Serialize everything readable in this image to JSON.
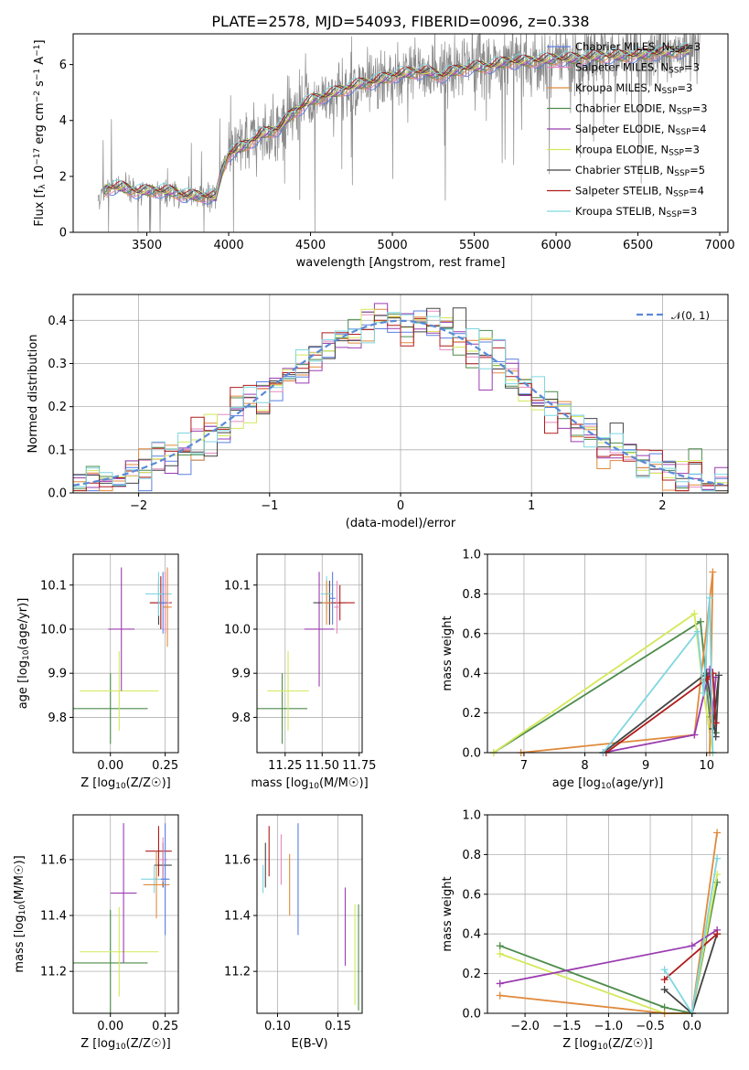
{
  "figure": {
    "title": "PLATE=2578, MJD=54093, FIBERID=0096, z=0.338"
  },
  "chart_data": [
    {
      "id": "spectrum",
      "type": "line",
      "xlabel": "wavelength [Angstrom, rest frame]",
      "ylabel": "Flux [f_λ 10^-17 erg cm^-2 s^-1 A^-1]",
      "xlim": [
        3050,
        7050
      ],
      "ylim": [
        0,
        7.1
      ],
      "xticks": [
        3500,
        4000,
        4500,
        5000,
        5500,
        6000,
        6500,
        7000
      ],
      "yticks": [
        0,
        2,
        4,
        6
      ],
      "grid": false,
      "legend_position": "top-right",
      "data_range": [
        3200,
        6880
      ],
      "legend": [
        {
          "label": "Chabrier MILES, N",
          "sub": "SSP",
          "suffix": "=3",
          "color": "#5a7fe0"
        },
        {
          "label": "Salpeter MILES, N",
          "sub": "SSP",
          "suffix": "=3",
          "color": "#e58ac0"
        },
        {
          "label": "Kroupa MILES, N",
          "sub": "SSP",
          "suffix": "=3",
          "color": "#e08a3c"
        },
        {
          "label": "Chabrier ELODIE, N",
          "sub": "SSP",
          "suffix": "=3",
          "color": "#4c8c4a"
        },
        {
          "label": "Salpeter ELODIE, N",
          "sub": "SSP",
          "suffix": "=4",
          "color": "#9b3cb0"
        },
        {
          "label": "Kroupa ELODIE, N",
          "sub": "SSP",
          "suffix": "=3",
          "color": "#d4e85a"
        },
        {
          "label": "Chabrier STELIB, N",
          "sub": "SSP",
          "suffix": "=5",
          "color": "#444444"
        },
        {
          "label": "Salpeter STELIB, N",
          "sub": "SSP",
          "suffix": "=4",
          "color": "#b01c1c"
        },
        {
          "label": "Kroupa STELIB, N",
          "sub": "SSP",
          "suffix": "=3",
          "color": "#7fd6e0"
        }
      ],
      "continuum": [
        [
          3200,
          1.2
        ],
        [
          3260,
          1.6
        ],
        [
          3350,
          1.6
        ],
        [
          3450,
          1.45
        ],
        [
          3550,
          1.5
        ],
        [
          3650,
          1.45
        ],
        [
          3750,
          1.3
        ],
        [
          3850,
          1.3
        ],
        [
          3920,
          1.25
        ],
        [
          3960,
          2.2
        ],
        [
          4000,
          2.8
        ],
        [
          4100,
          3.1
        ],
        [
          4200,
          3.5
        ],
        [
          4300,
          3.7
        ],
        [
          4400,
          4.3
        ],
        [
          4500,
          4.7
        ],
        [
          4600,
          4.9
        ],
        [
          4700,
          5.1
        ],
        [
          4800,
          5.3
        ],
        [
          4900,
          5.4
        ],
        [
          5000,
          5.6
        ],
        [
          5100,
          5.7
        ],
        [
          5200,
          5.75
        ],
        [
          5300,
          5.6
        ],
        [
          5400,
          5.8
        ],
        [
          5500,
          5.9
        ],
        [
          5600,
          5.95
        ],
        [
          5700,
          6.1
        ],
        [
          5800,
          6.1
        ],
        [
          5900,
          6.15
        ],
        [
          6000,
          6.2
        ],
        [
          6100,
          6.2
        ],
        [
          6200,
          6.25
        ],
        [
          6300,
          6.3
        ],
        [
          6400,
          6.3
        ],
        [
          6500,
          6.35
        ],
        [
          6600,
          6.4
        ],
        [
          6700,
          6.45
        ],
        [
          6800,
          6.5
        ],
        [
          6880,
          6.5
        ]
      ]
    },
    {
      "id": "residuals",
      "type": "step",
      "xlabel": "(data-model)/error",
      "ylabel": "Normed distribution",
      "xlim": [
        -2.5,
        2.5
      ],
      "ylim": [
        0,
        0.46
      ],
      "xticks": [
        -2,
        -1,
        0,
        1,
        2
      ],
      "yticks": [
        0.0,
        0.1,
        0.2,
        0.3,
        0.4
      ],
      "grid": true,
      "legend_position": "top-right",
      "legend": [
        {
          "label": "𝒩(0, 1)",
          "color": "#5a8ad8",
          "style": "dashed"
        }
      ],
      "bin_width": 0.1
    },
    {
      "id": "z-age",
      "type": "errorbar",
      "xlabel": "Z [log10(Z/Z☉)]",
      "ylabel": "age  [log10(age/yr)]",
      "xlim": [
        -0.17,
        0.31
      ],
      "ylim": [
        9.72,
        10.17
      ],
      "xticks": [
        0.0,
        0.25
      ],
      "yticks": [
        9.8,
        9.9,
        10.0,
        10.1
      ],
      "grid": true,
      "points": [
        {
          "x": 0.0,
          "y": 9.82,
          "xerr": 0.17,
          "yerr": 0.08,
          "color": "#4c8c4a"
        },
        {
          "x": 0.04,
          "y": 9.86,
          "xerr": 0.18,
          "yerr": 0.09,
          "color": "#d4e85a"
        },
        {
          "x": 0.05,
          "y": 10.0,
          "xerr": 0.06,
          "yerr": 0.14,
          "color": "#9b3cb0"
        },
        {
          "x": 0.22,
          "y": 10.06,
          "xerr": 0.04,
          "yerr": 0.05,
          "color": "#444444"
        },
        {
          "x": 0.23,
          "y": 10.06,
          "xerr": 0.05,
          "yerr": 0.06,
          "color": "#b01c1c"
        },
        {
          "x": 0.22,
          "y": 10.08,
          "xerr": 0.06,
          "yerr": 0.05,
          "color": "#7fd6e0"
        },
        {
          "x": 0.25,
          "y": 10.06,
          "xerr": 0.02,
          "yerr": 0.07,
          "color": "#e58ac0"
        },
        {
          "x": 0.26,
          "y": 10.05,
          "xerr": 0.02,
          "yerr": 0.09,
          "color": "#e08a3c"
        },
        {
          "x": 0.24,
          "y": 10.06,
          "xerr": 0.02,
          "yerr": 0.07,
          "color": "#5a7fe0"
        }
      ]
    },
    {
      "id": "mass-age",
      "type": "errorbar",
      "xlabel": "mass [log10(M/M☉)]",
      "ylabel": "",
      "xlim": [
        11.06,
        11.77
      ],
      "ylim": [
        9.72,
        10.17
      ],
      "xticks": [
        11.25,
        11.5,
        11.75
      ],
      "yticks": [
        9.8,
        9.9,
        10.0,
        10.1
      ],
      "grid": true,
      "points": [
        {
          "x": 11.23,
          "y": 9.82,
          "xerr": 0.17,
          "yerr": 0.08,
          "color": "#4c8c4a"
        },
        {
          "x": 11.27,
          "y": 9.86,
          "xerr": 0.14,
          "yerr": 0.09,
          "color": "#d4e85a"
        },
        {
          "x": 11.48,
          "y": 10.0,
          "xerr": 0.1,
          "yerr": 0.13,
          "color": "#9b3cb0"
        },
        {
          "x": 11.55,
          "y": 10.06,
          "xerr": 0.11,
          "yerr": 0.05,
          "color": "#444444"
        },
        {
          "x": 11.62,
          "y": 10.06,
          "xerr": 0.1,
          "yerr": 0.04,
          "color": "#b01c1c"
        },
        {
          "x": 11.53,
          "y": 10.08,
          "xerr": 0.04,
          "yerr": 0.04,
          "color": "#7fd6e0"
        },
        {
          "x": 11.6,
          "y": 10.05,
          "xerr": 0.02,
          "yerr": 0.06,
          "color": "#e58ac0"
        },
        {
          "x": 11.53,
          "y": 10.06,
          "xerr": 0.03,
          "yerr": 0.05,
          "color": "#e08a3c"
        },
        {
          "x": 11.57,
          "y": 10.07,
          "xerr": 0.02,
          "yerr": 0.06,
          "color": "#5a7fe0"
        }
      ]
    },
    {
      "id": "age-weight",
      "type": "line",
      "xlabel": "age  [log10(age/yr)]",
      "ylabel": "mass weight",
      "xlim": [
        6.4,
        10.35
      ],
      "ylim": [
        0,
        1.0
      ],
      "xticks": [
        7,
        8,
        9,
        10
      ],
      "yticks": [
        0.0,
        0.2,
        0.4,
        0.6,
        0.8,
        1.0
      ],
      "grid": true,
      "series": [
        {
          "color": "#4c8c4a",
          "points": [
            [
              6.5,
              0.0
            ],
            [
              9.9,
              0.66
            ],
            [
              10.05,
              0.18
            ],
            [
              10.15,
              0.1
            ]
          ]
        },
        {
          "color": "#d4e85a",
          "points": [
            [
              6.5,
              0.0
            ],
            [
              9.8,
              0.7
            ],
            [
              9.95,
              0.3
            ],
            [
              10.1,
              0.0
            ]
          ]
        },
        {
          "color": "#e08a3c",
          "points": [
            [
              6.95,
              0.0
            ],
            [
              9.8,
              0.09
            ],
            [
              10.1,
              0.91
            ],
            [
              10.05,
              0.0
            ]
          ]
        },
        {
          "color": "#9b3cb0",
          "points": [
            [
              8.3,
              0.0
            ],
            [
              9.8,
              0.09
            ],
            [
              10.05,
              0.42
            ],
            [
              10.1,
              0.2
            ],
            [
              10.15,
              0.38
            ]
          ]
        },
        {
          "color": "#444444",
          "points": [
            [
              8.3,
              0.0
            ],
            [
              10.0,
              0.4
            ],
            [
              10.15,
              0.08
            ],
            [
              10.2,
              0.39
            ],
            [
              10.1,
              0.12
            ]
          ]
        },
        {
          "color": "#b01c1c",
          "points": [
            [
              8.35,
              0.0
            ],
            [
              10.0,
              0.37
            ],
            [
              10.1,
              0.4
            ],
            [
              10.15,
              0.15
            ]
          ]
        },
        {
          "color": "#7fd6e0",
          "points": [
            [
              8.3,
              0.0
            ],
            [
              9.85,
              0.61
            ],
            [
              9.95,
              0.3
            ],
            [
              10.05,
              0.78
            ],
            [
              10.1,
              0.0
            ]
          ]
        }
      ]
    },
    {
      "id": "z-mass",
      "type": "errorbar",
      "xlabel": "Z [log10(Z/Z☉)]",
      "ylabel": "mass [log10(M/M☉)]",
      "xlim": [
        -0.17,
        0.31
      ],
      "ylim": [
        11.05,
        11.76
      ],
      "xticks": [
        0.0,
        0.25
      ],
      "yticks": [
        11.2,
        11.4,
        11.6
      ],
      "grid": true,
      "points": [
        {
          "x": 0.0,
          "y": 11.23,
          "xerr": 0.17,
          "yerr": 0.19,
          "color": "#4c8c4a"
        },
        {
          "x": 0.04,
          "y": 11.27,
          "xerr": 0.18,
          "yerr": 0.16,
          "color": "#d4e85a"
        },
        {
          "x": 0.06,
          "y": 11.48,
          "xerr": 0.06,
          "yerr": 0.25,
          "color": "#9b3cb0"
        },
        {
          "x": 0.24,
          "y": 11.58,
          "xerr": 0.04,
          "yerr": 0.08,
          "color": "#444444"
        },
        {
          "x": 0.22,
          "y": 11.63,
          "xerr": 0.06,
          "yerr": 0.09,
          "color": "#b01c1c"
        },
        {
          "x": 0.2,
          "y": 11.53,
          "xerr": 0.06,
          "yerr": 0.05,
          "color": "#7fd6e0"
        },
        {
          "x": 0.24,
          "y": 11.6,
          "xerr": 0.02,
          "yerr": 0.08,
          "color": "#e58ac0"
        },
        {
          "x": 0.21,
          "y": 11.51,
          "xerr": 0.06,
          "yerr": 0.12,
          "color": "#e08a3c"
        },
        {
          "x": 0.25,
          "y": 11.53,
          "xerr": 0.02,
          "yerr": 0.2,
          "color": "#5a7fe0"
        }
      ]
    },
    {
      "id": "ebv-mass",
      "type": "errorbar",
      "xlabel": "E(B-V)",
      "ylabel": "",
      "xlim": [
        0.083,
        0.17
      ],
      "ylim": [
        11.05,
        11.76
      ],
      "xticks": [
        0.1,
        0.15
      ],
      "yticks": [
        11.2,
        11.4,
        11.6
      ],
      "grid": true,
      "points": [
        {
          "x": 0.088,
          "y": 11.53,
          "xerr": 0.0,
          "yerr": 0.05,
          "color": "#7fd6e0"
        },
        {
          "x": 0.09,
          "y": 11.58,
          "xerr": 0.0,
          "yerr": 0.08,
          "color": "#444444"
        },
        {
          "x": 0.093,
          "y": 11.63,
          "xerr": 0.0,
          "yerr": 0.09,
          "color": "#b01c1c"
        },
        {
          "x": 0.103,
          "y": 11.6,
          "xerr": 0.0,
          "yerr": 0.09,
          "color": "#e58ac0"
        },
        {
          "x": 0.11,
          "y": 11.51,
          "xerr": 0.0,
          "yerr": 0.11,
          "color": "#e08a3c"
        },
        {
          "x": 0.117,
          "y": 11.53,
          "xerr": 0.0,
          "yerr": 0.2,
          "color": "#5a7fe0"
        },
        {
          "x": 0.156,
          "y": 11.36,
          "xerr": 0.0,
          "yerr": 0.14,
          "color": "#9b3cb0"
        },
        {
          "x": 0.164,
          "y": 11.26,
          "xerr": 0.0,
          "yerr": 0.18,
          "color": "#d4e85a"
        },
        {
          "x": 0.167,
          "y": 11.25,
          "xerr": 0.0,
          "yerr": 0.19,
          "color": "#4c8c4a"
        }
      ]
    },
    {
      "id": "z-weight",
      "type": "line",
      "xlabel": "Z [log10(Z/Z☉)]",
      "ylabel": "mass weight",
      "xlim": [
        -2.45,
        0.43
      ],
      "ylim": [
        0,
        1.0
      ],
      "xticks": [
        -2.0,
        -1.5,
        -1.0,
        -0.5,
        0.0
      ],
      "yticks": [
        0.0,
        0.2,
        0.4,
        0.6,
        0.8,
        1.0
      ],
      "grid": true,
      "series": [
        {
          "color": "#4c8c4a",
          "points": [
            [
              -2.3,
              0.34
            ],
            [
              -0.33,
              0.03
            ],
            [
              0.0,
              0.0
            ],
            [
              0.3,
              0.66
            ]
          ]
        },
        {
          "color": "#d4e85a",
          "points": [
            [
              -2.3,
              0.3
            ],
            [
              -0.33,
              0.0
            ],
            [
              0.0,
              0.0
            ],
            [
              0.3,
              0.7
            ]
          ]
        },
        {
          "color": "#e08a3c",
          "points": [
            [
              -2.3,
              0.09
            ],
            [
              -0.33,
              0.0
            ],
            [
              0.0,
              0.0
            ],
            [
              0.3,
              0.91
            ]
          ]
        },
        {
          "color": "#9b3cb0",
          "points": [
            [
              -2.3,
              0.15
            ],
            [
              0.0,
              0.34
            ],
            [
              0.3,
              0.42
            ]
          ]
        },
        {
          "color": "#444444",
          "points": [
            [
              -0.33,
              0.12
            ],
            [
              0.0,
              0.0
            ],
            [
              0.3,
              0.4
            ]
          ]
        },
        {
          "color": "#b01c1c",
          "points": [
            [
              -0.33,
              0.17
            ],
            [
              0.3,
              0.4
            ]
          ]
        },
        {
          "color": "#7fd6e0",
          "points": [
            [
              -0.33,
              0.22
            ],
            [
              0.0,
              0.0
            ],
            [
              0.3,
              0.78
            ]
          ]
        }
      ]
    }
  ]
}
